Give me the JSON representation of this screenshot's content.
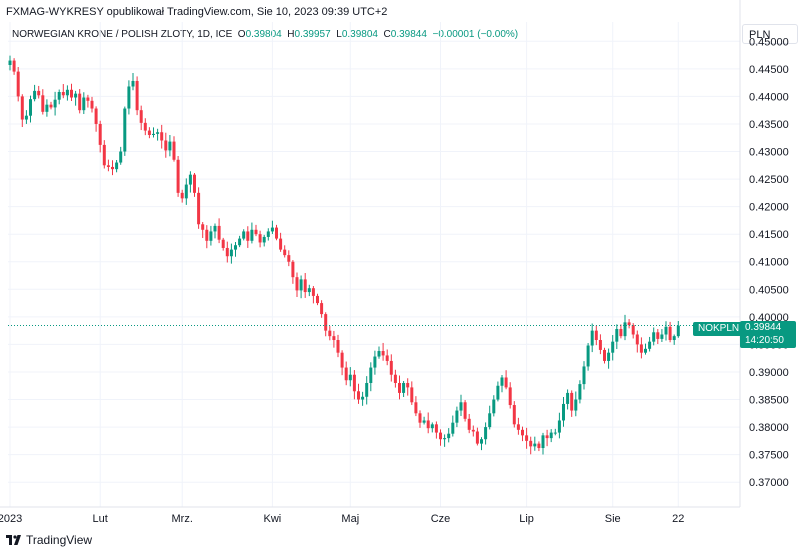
{
  "header": {
    "publisher_line": "FXMAG-WYKRESY opublikował TradingView.com, Sie 10, 2023 09:39 UTC+2"
  },
  "symbol": {
    "name": "NORWEGIAN KRONE / POLISH ZLOTY, 1D, ICE",
    "o_label": "O",
    "o_value": "0.39804",
    "h_label": "H",
    "h_value": "0.39957",
    "l_label": "L",
    "l_value": "0.39804",
    "c_label": "C",
    "c_value": "0.39844",
    "change": "−0.00001 (−0.00%)"
  },
  "currency": "PLN",
  "price_tag": {
    "symbol": "NOKPLN",
    "price": "0.39844",
    "countdown": "14:20:50"
  },
  "footer": {
    "brand": "TradingView"
  },
  "colors": {
    "up": "#089981",
    "down": "#f23645",
    "grid": "#f0f3fa",
    "text": "#131722"
  },
  "chart_data": {
    "type": "candlestick",
    "title": "NORWEGIAN KRONE / POLISH ZLOTY, 1D, ICE",
    "y_ticks": [
      "0.45000",
      "0.44500",
      "0.44000",
      "0.43500",
      "0.43000",
      "0.42500",
      "0.42000",
      "0.41500",
      "0.41000",
      "0.40500",
      "0.40000",
      "0.39500",
      "0.39000",
      "0.38500",
      "0.38000",
      "0.37500",
      "0.37000"
    ],
    "ylim": [
      0.3655,
      0.4535
    ],
    "x_ticks": [
      {
        "label": "2023",
        "index": 0
      },
      {
        "label": "Lut",
        "index": 22
      },
      {
        "label": "Mrz.",
        "index": 42
      },
      {
        "label": "Kwi",
        "index": 64
      },
      {
        "label": "Maj",
        "index": 83
      },
      {
        "label": "Cze",
        "index": 105
      },
      {
        "label": "Lip",
        "index": 126
      },
      {
        "label": "Sie",
        "index": 147
      },
      {
        "label": "22",
        "index": 163
      }
    ],
    "last_price": 0.39844,
    "closes": [
      0.4465,
      0.4445,
      0.44,
      0.4358,
      0.4365,
      0.4395,
      0.441,
      0.4402,
      0.4372,
      0.4385,
      0.438,
      0.4394,
      0.4408,
      0.4402,
      0.4412,
      0.4398,
      0.4405,
      0.4375,
      0.4398,
      0.4392,
      0.4378,
      0.435,
      0.4312,
      0.4275,
      0.4272,
      0.4268,
      0.428,
      0.43,
      0.4378,
      0.4418,
      0.4428,
      0.4375,
      0.4352,
      0.4338,
      0.433,
      0.4332,
      0.4335,
      0.432,
      0.4302,
      0.4318,
      0.4285,
      0.4225,
      0.4215,
      0.424,
      0.4258,
      0.4225,
      0.4168,
      0.4158,
      0.4138,
      0.4155,
      0.4165,
      0.414,
      0.4125,
      0.411,
      0.4122,
      0.413,
      0.4142,
      0.4155,
      0.4138,
      0.4158,
      0.415,
      0.4135,
      0.4145,
      0.4155,
      0.4162,
      0.4142,
      0.4122,
      0.4112,
      0.41,
      0.4072,
      0.4048,
      0.4068,
      0.4045,
      0.4052,
      0.4038,
      0.4025,
      0.4005,
      0.3975,
      0.3965,
      0.3958,
      0.3935,
      0.3908,
      0.3885,
      0.3895,
      0.3865,
      0.385,
      0.3855,
      0.388,
      0.3908,
      0.3928,
      0.3938,
      0.393,
      0.392,
      0.3895,
      0.388,
      0.3862,
      0.388,
      0.3872,
      0.3845,
      0.3825,
      0.3808,
      0.3812,
      0.3798,
      0.3805,
      0.379,
      0.3778,
      0.378,
      0.3788,
      0.3808,
      0.383,
      0.3845,
      0.3815,
      0.3795,
      0.3792,
      0.377,
      0.3778,
      0.38,
      0.3825,
      0.385,
      0.3875,
      0.389,
      0.3872,
      0.384,
      0.3805,
      0.3795,
      0.3785,
      0.3775,
      0.3765,
      0.377,
      0.3762,
      0.3785,
      0.378,
      0.379,
      0.379,
      0.3812,
      0.3842,
      0.3862,
      0.383,
      0.385,
      0.3878,
      0.391,
      0.3948,
      0.3975,
      0.3958,
      0.394,
      0.392,
      0.3935,
      0.3955,
      0.3978,
      0.3965,
      0.399,
      0.3985,
      0.3968,
      0.395,
      0.3935,
      0.3942,
      0.3955,
      0.3972,
      0.396,
      0.3968,
      0.3982,
      0.3958,
      0.3965,
      0.3984
    ]
  }
}
